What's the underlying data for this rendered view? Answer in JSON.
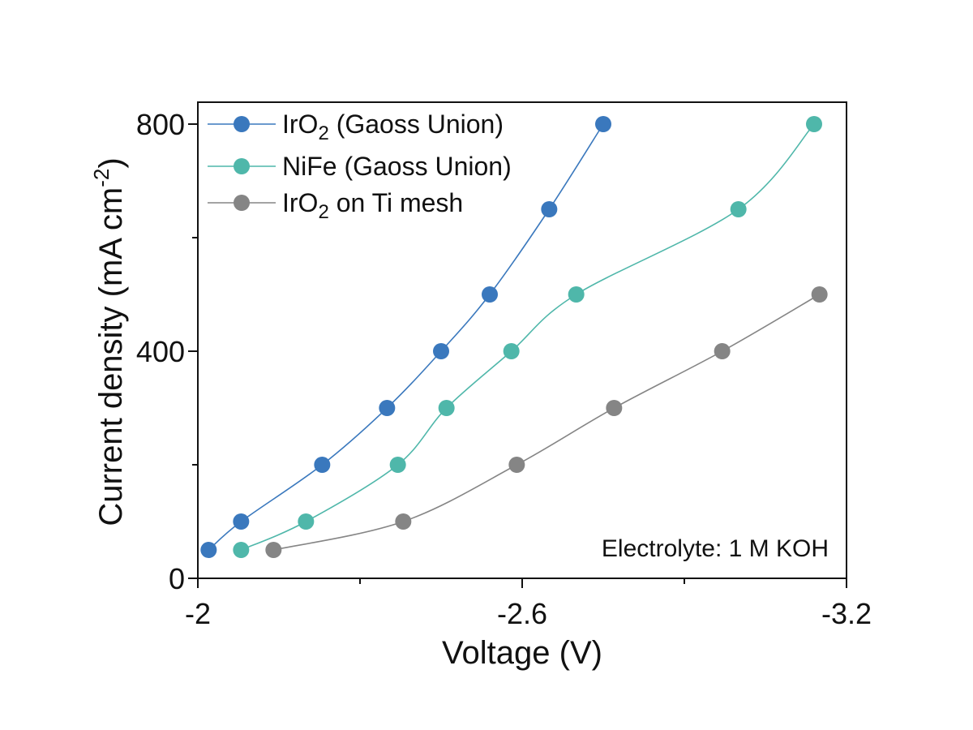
{
  "chart_data": {
    "type": "line",
    "xlabel": "Voltage (V)",
    "ylabel_main": "Current density (mA cm",
    "ylabel_sup": "-2",
    "ylabel_close": ")",
    "xlim": [
      -2.0,
      -3.2
    ],
    "ylim": [
      0,
      800
    ],
    "x_ticks": [
      {
        "value": -2.0,
        "label": "-2"
      },
      {
        "value": -2.6,
        "label": "-2.6"
      },
      {
        "value": -3.2,
        "label": "-3.2"
      }
    ],
    "x_minor_ticks": [
      -2.3,
      -2.9
    ],
    "y_ticks": [
      {
        "value": 0,
        "label": "0"
      },
      {
        "value": 400,
        "label": "400"
      },
      {
        "value": 800,
        "label": "800"
      }
    ],
    "y_minor_ticks": [
      200,
      600
    ],
    "legend_position": "top-left",
    "grid": false,
    "annotation": "Electrolyte: 1 M KOH",
    "series": [
      {
        "label_parts": [
          {
            "text": "IrO"
          },
          {
            "text": "2",
            "sub": true
          },
          {
            "text": " (Gaoss Union)"
          }
        ],
        "color": "#3a78bd",
        "points": [
          {
            "x": -2.02,
            "y": 50
          },
          {
            "x": -2.08,
            "y": 100
          },
          {
            "x": -2.23,
            "y": 200
          },
          {
            "x": -2.35,
            "y": 300
          },
          {
            "x": -2.45,
            "y": 400
          },
          {
            "x": -2.54,
            "y": 500
          },
          {
            "x": -2.65,
            "y": 650
          },
          {
            "x": -2.75,
            "y": 800
          }
        ]
      },
      {
        "label_parts": [
          {
            "text": "NiFe (Gaoss Union)"
          }
        ],
        "color": "#4fb7aa",
        "points": [
          {
            "x": -2.08,
            "y": 50
          },
          {
            "x": -2.2,
            "y": 100
          },
          {
            "x": -2.37,
            "y": 200
          },
          {
            "x": -2.46,
            "y": 300
          },
          {
            "x": -2.58,
            "y": 400
          },
          {
            "x": -2.7,
            "y": 500
          },
          {
            "x": -3.0,
            "y": 650
          },
          {
            "x": -3.14,
            "y": 800
          }
        ]
      },
      {
        "label_parts": [
          {
            "text": "IrO"
          },
          {
            "text": "2",
            "sub": true
          },
          {
            "text": " on Ti mesh"
          }
        ],
        "color": "#858585",
        "points": [
          {
            "x": -2.14,
            "y": 50
          },
          {
            "x": -2.38,
            "y": 100
          },
          {
            "x": -2.59,
            "y": 200
          },
          {
            "x": -2.77,
            "y": 300
          },
          {
            "x": -2.97,
            "y": 400
          },
          {
            "x": -3.15,
            "y": 500
          }
        ]
      }
    ]
  }
}
